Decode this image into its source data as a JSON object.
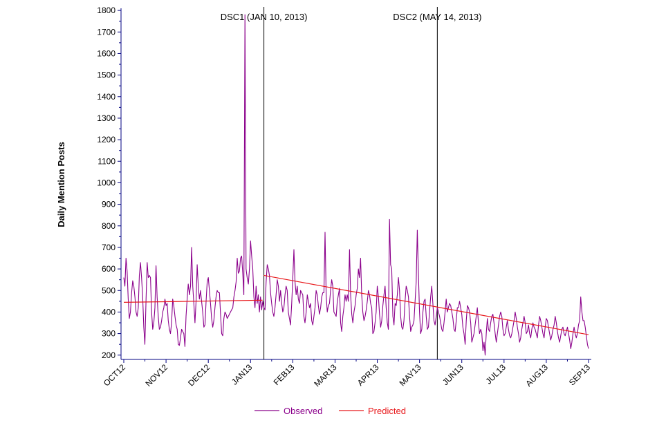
{
  "chart_data": {
    "type": "line",
    "ylabel": "Daily Mention Posts",
    "xlabel": "",
    "ylim": [
      180,
      1810
    ],
    "yticks": [
      200,
      300,
      400,
      500,
      600,
      700,
      800,
      900,
      1000,
      1100,
      1200,
      1300,
      1400,
      1500,
      1600,
      1700,
      1800
    ],
    "x_tick_labels": [
      "OCT12",
      "NOV12",
      "DEC12",
      "JAN13",
      "FEB13",
      "MAR13",
      "APR13",
      "MAY13",
      "JUN13",
      "JUL13",
      "AUG13",
      "SEP13"
    ],
    "x_day_range": [
      0,
      335
    ],
    "events": [
      {
        "label": "DSC1 (JAN 10, 2013)",
        "day": 101
      },
      {
        "label": "DSC2 (MAY 14, 2013)",
        "day": 226
      }
    ],
    "legend": {
      "position": "bottom-center",
      "items": [
        "Observed",
        "Predicted"
      ]
    },
    "colors": {
      "observed": "#8b008b",
      "predicted": "#e8191c",
      "axis": "#000080",
      "event_line": "#000000"
    },
    "series": [
      {
        "name": "Observed",
        "values": [
          560,
          520,
          650,
          590,
          460,
          370,
          400,
          490,
          545,
          520,
          470,
          400,
          380,
          420,
          570,
          630,
          560,
          470,
          330,
          250,
          460,
          630,
          560,
          570,
          560,
          400,
          320,
          350,
          420,
          615,
          470,
          380,
          320,
          330,
          360,
          400,
          420,
          460,
          430,
          440,
          360,
          320,
          300,
          350,
          460,
          430,
          380,
          340,
          320,
          250,
          245,
          280,
          320,
          310,
          300,
          240,
          380,
          460,
          530,
          480,
          520,
          700,
          520,
          440,
          350,
          450,
          620,
          520,
          460,
          500,
          450,
          400,
          330,
          340,
          450,
          540,
          560,
          500,
          440,
          370,
          330,
          360,
          420,
          470,
          500,
          490,
          490,
          390,
          300,
          290,
          370,
          400,
          390,
          370,
          380,
          390,
          400,
          410,
          420,
          470,
          500,
          540,
          650,
          580,
          590,
          650,
          660,
          580,
          480,
          1780,
          600,
          560,
          530,
          600,
          730,
          660,
          600,
          470,
          420,
          520,
          440,
          480,
          400,
          470,
          410,
          450,
          420,
          410,
          540,
          620,
          600,
          570,
          490,
          440,
          400,
          380,
          420,
          480,
          550,
          520,
          450,
          500,
          440,
          400,
          420,
          480,
          520,
          500,
          400,
          370,
          340,
          440,
          560,
          690,
          540,
          480,
          520,
          460,
          440,
          500,
          490,
          480,
          380,
          350,
          400,
          480,
          450,
          420,
          440,
          360,
          340,
          380,
          420,
          500,
          480,
          430,
          390,
          420,
          470,
          490,
          490,
          770,
          480,
          400,
          430,
          440,
          500,
          550,
          520,
          400,
          390,
          380,
          450,
          480,
          510,
          350,
          310,
          380,
          420,
          480,
          450,
          480,
          450,
          690,
          480,
          390,
          350,
          400,
          430,
          480,
          510,
          600,
          560,
          650,
          480,
          400,
          360,
          380,
          410,
          450,
          500,
          480,
          440,
          420,
          300,
          310,
          350,
          400,
          520,
          470,
          390,
          330,
          360,
          430,
          480,
          520,
          420,
          350,
          320,
          830,
          620,
          600,
          380,
          340,
          440,
          430,
          480,
          560,
          500,
          380,
          330,
          320,
          360,
          450,
          520,
          500,
          470,
          380,
          310,
          330,
          340,
          360,
          450,
          540,
          780,
          580,
          400,
          300,
          320,
          400,
          450,
          460,
          380,
          320,
          330,
          400,
          470,
          520,
          440,
          360,
          340,
          380,
          420,
          400,
          380,
          350,
          320,
          310,
          350,
          400,
          460,
          400,
          420,
          440,
          430,
          400,
          370,
          320,
          310,
          360,
          420,
          420,
          450,
          420,
          390,
          330,
          300,
          250,
          360,
          430,
          420,
          400,
          350,
          260,
          280,
          300,
          340,
          380,
          420,
          350,
          300,
          320,
          300,
          220,
          260,
          200,
          300,
          370,
          320,
          310,
          350,
          380,
          390,
          350,
          300,
          260,
          300,
          340,
          380,
          400,
          380,
          320,
          290,
          300,
          330,
          360,
          320,
          290,
          280,
          300,
          330,
          360,
          400,
          370,
          330,
          300,
          260,
          280,
          320,
          350,
          380,
          350,
          300,
          310,
          340,
          300,
          280,
          320,
          350,
          330,
          320,
          300,
          280,
          340,
          380,
          360,
          330,
          300,
          280,
          330,
          370,
          360,
          330,
          300,
          270,
          290,
          320,
          340,
          380,
          350,
          310,
          280,
          260,
          290,
          320,
          330,
          300,
          290,
          310,
          330,
          300,
          270,
          230,
          260,
          300,
          330,
          300,
          280,
          300,
          340,
          360,
          470,
          400,
          360,
          360,
          330,
          290,
          250,
          230
        ]
      },
      {
        "name": "Predicted",
        "segments": [
          {
            "x": [
              0,
              100
            ],
            "y": [
              445,
              455
            ]
          },
          {
            "x": [
              101,
              335
            ],
            "y": [
              570,
              295
            ]
          }
        ]
      }
    ]
  }
}
